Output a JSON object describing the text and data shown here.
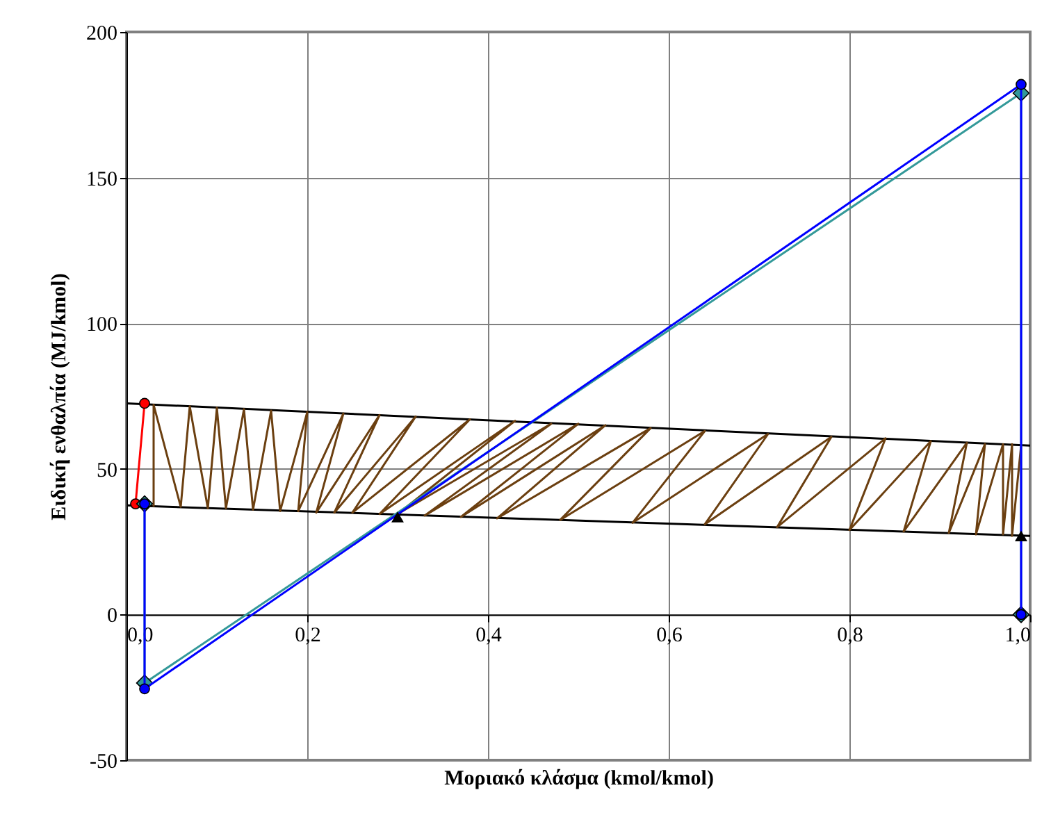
{
  "chart_data": {
    "type": "line",
    "xlabel": "Μοριακό κλάσμα (kmol/kmol)",
    "ylabel": "Ειδική ενθαλπία (MJ/kmol)",
    "xlim": [
      0,
      1
    ],
    "xticks": [
      {
        "value": 0,
        "label": "0,0"
      },
      {
        "value": 0.2,
        "label": "0,2"
      },
      {
        "value": 0.4,
        "label": "0,4"
      },
      {
        "value": 0.6,
        "label": "0,6"
      },
      {
        "value": 0.8,
        "label": "0,8"
      },
      {
        "value": 1,
        "label": "1,0"
      }
    ],
    "ylim": [
      -50,
      200
    ],
    "yticks": [
      -50,
      0,
      50,
      100,
      150,
      200
    ],
    "grid": true,
    "marker": "none",
    "line_style": "solid",
    "series": [
      {
        "color": "#000000",
        "x": [
          0,
          1
        ],
        "values": [
          72.5,
          58
        ]
      },
      {
        "color": "#000000",
        "x": [
          0,
          1
        ],
        "values": [
          37.5,
          27
        ]
      },
      {
        "color": "#6b3f10",
        "x": [
          0.03,
          0.03,
          0.06,
          0.07,
          0.09,
          0.1,
          0.11,
          0.13,
          0.14,
          0.16,
          0.17,
          0.2,
          0.19,
          0.24,
          0.21,
          0.28,
          0.23,
          0.32,
          0.25,
          0.38,
          0.28,
          0.43,
          0.3,
          0.47,
          0.33,
          0.5,
          0.37,
          0.53,
          0.41,
          0.58,
          0.48,
          0.64,
          0.56,
          0.71,
          0.64,
          0.78,
          0.72,
          0.84,
          0.8,
          0.89,
          0.86,
          0.93,
          0.91,
          0.95,
          0.94,
          0.97,
          0.97,
          0.98,
          0.98,
          0.99
        ],
        "values": [
          37,
          72,
          37,
          71.5,
          36.5,
          71,
          36.5,
          70.5,
          36,
          70,
          35.5,
          69.5,
          35.5,
          69,
          35,
          68.5,
          35,
          68,
          35,
          67,
          34.5,
          66.5,
          34.5,
          65.5,
          34,
          65.5,
          33.5,
          65,
          33,
          64,
          32.5,
          63,
          31.5,
          62,
          31,
          61,
          30,
          60.5,
          29,
          59.5,
          28.5,
          59,
          28,
          58.5,
          27.5,
          58.5,
          27.5,
          58.5,
          27,
          58
        ]
      },
      {
        "color": "#ff0000",
        "marker": "circle",
        "x": [
          0.02,
          0.01
        ],
        "values": [
          72.5,
          38
        ]
      },
      {
        "color": "#339999",
        "marker": "diamond",
        "x": [
          0.02,
          0.02,
          0.99,
          0.99
        ],
        "values": [
          38,
          -23.5,
          179,
          0
        ]
      },
      {
        "color": "#0000ff",
        "marker": "circle",
        "x": [
          0.02,
          0.02,
          0.99,
          0.99
        ],
        "values": [
          38,
          -25.5,
          182,
          0
        ]
      },
      {
        "type": "scatter",
        "color": "#000000",
        "marker": "triangle",
        "x": [
          0.3,
          0.99
        ],
        "values": [
          33.5,
          27
        ]
      }
    ]
  }
}
